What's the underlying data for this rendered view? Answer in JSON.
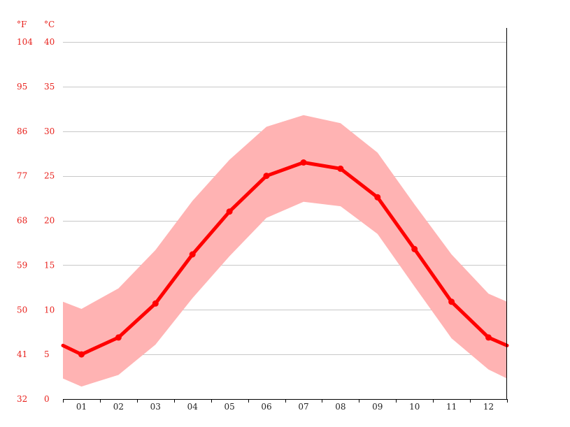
{
  "chart_data": {
    "type": "line",
    "title": "",
    "xlabel": "",
    "ylabel": "",
    "unit_left": "°F",
    "unit_right": "°C",
    "categories": [
      "01",
      "02",
      "03",
      "04",
      "05",
      "06",
      "07",
      "08",
      "09",
      "10",
      "11",
      "12"
    ],
    "celsius_ticks": [
      0,
      5,
      10,
      15,
      20,
      25,
      30,
      35,
      40
    ],
    "fahrenheit_ticks": [
      32,
      41,
      50,
      59,
      68,
      77,
      86,
      95,
      104
    ],
    "ylim": [
      0,
      40
    ],
    "grid": true,
    "series": [
      {
        "role": "mean",
        "values": [
          5.0,
          6.9,
          10.7,
          16.2,
          21.0,
          25.0,
          26.5,
          25.8,
          22.6,
          16.8,
          10.9,
          6.9
        ],
        "color": "#ff0000"
      },
      {
        "role": "max",
        "values": [
          10.1,
          12.4,
          16.7,
          22.2,
          26.8,
          30.5,
          31.8,
          30.9,
          27.6,
          21.8,
          16.2,
          11.8
        ],
        "color": "#ffb3b3"
      },
      {
        "role": "min",
        "values": [
          1.4,
          2.7,
          6.1,
          11.3,
          16.0,
          20.3,
          22.1,
          21.6,
          18.5,
          12.6,
          6.8,
          3.3
        ],
        "color": "#ffb3b3"
      }
    ],
    "edge_left": {
      "mean": 6.0,
      "max": 10.9,
      "min": 2.3
    },
    "edge_right": {
      "mean": 6.0,
      "max": 10.9,
      "min": 2.3
    }
  }
}
